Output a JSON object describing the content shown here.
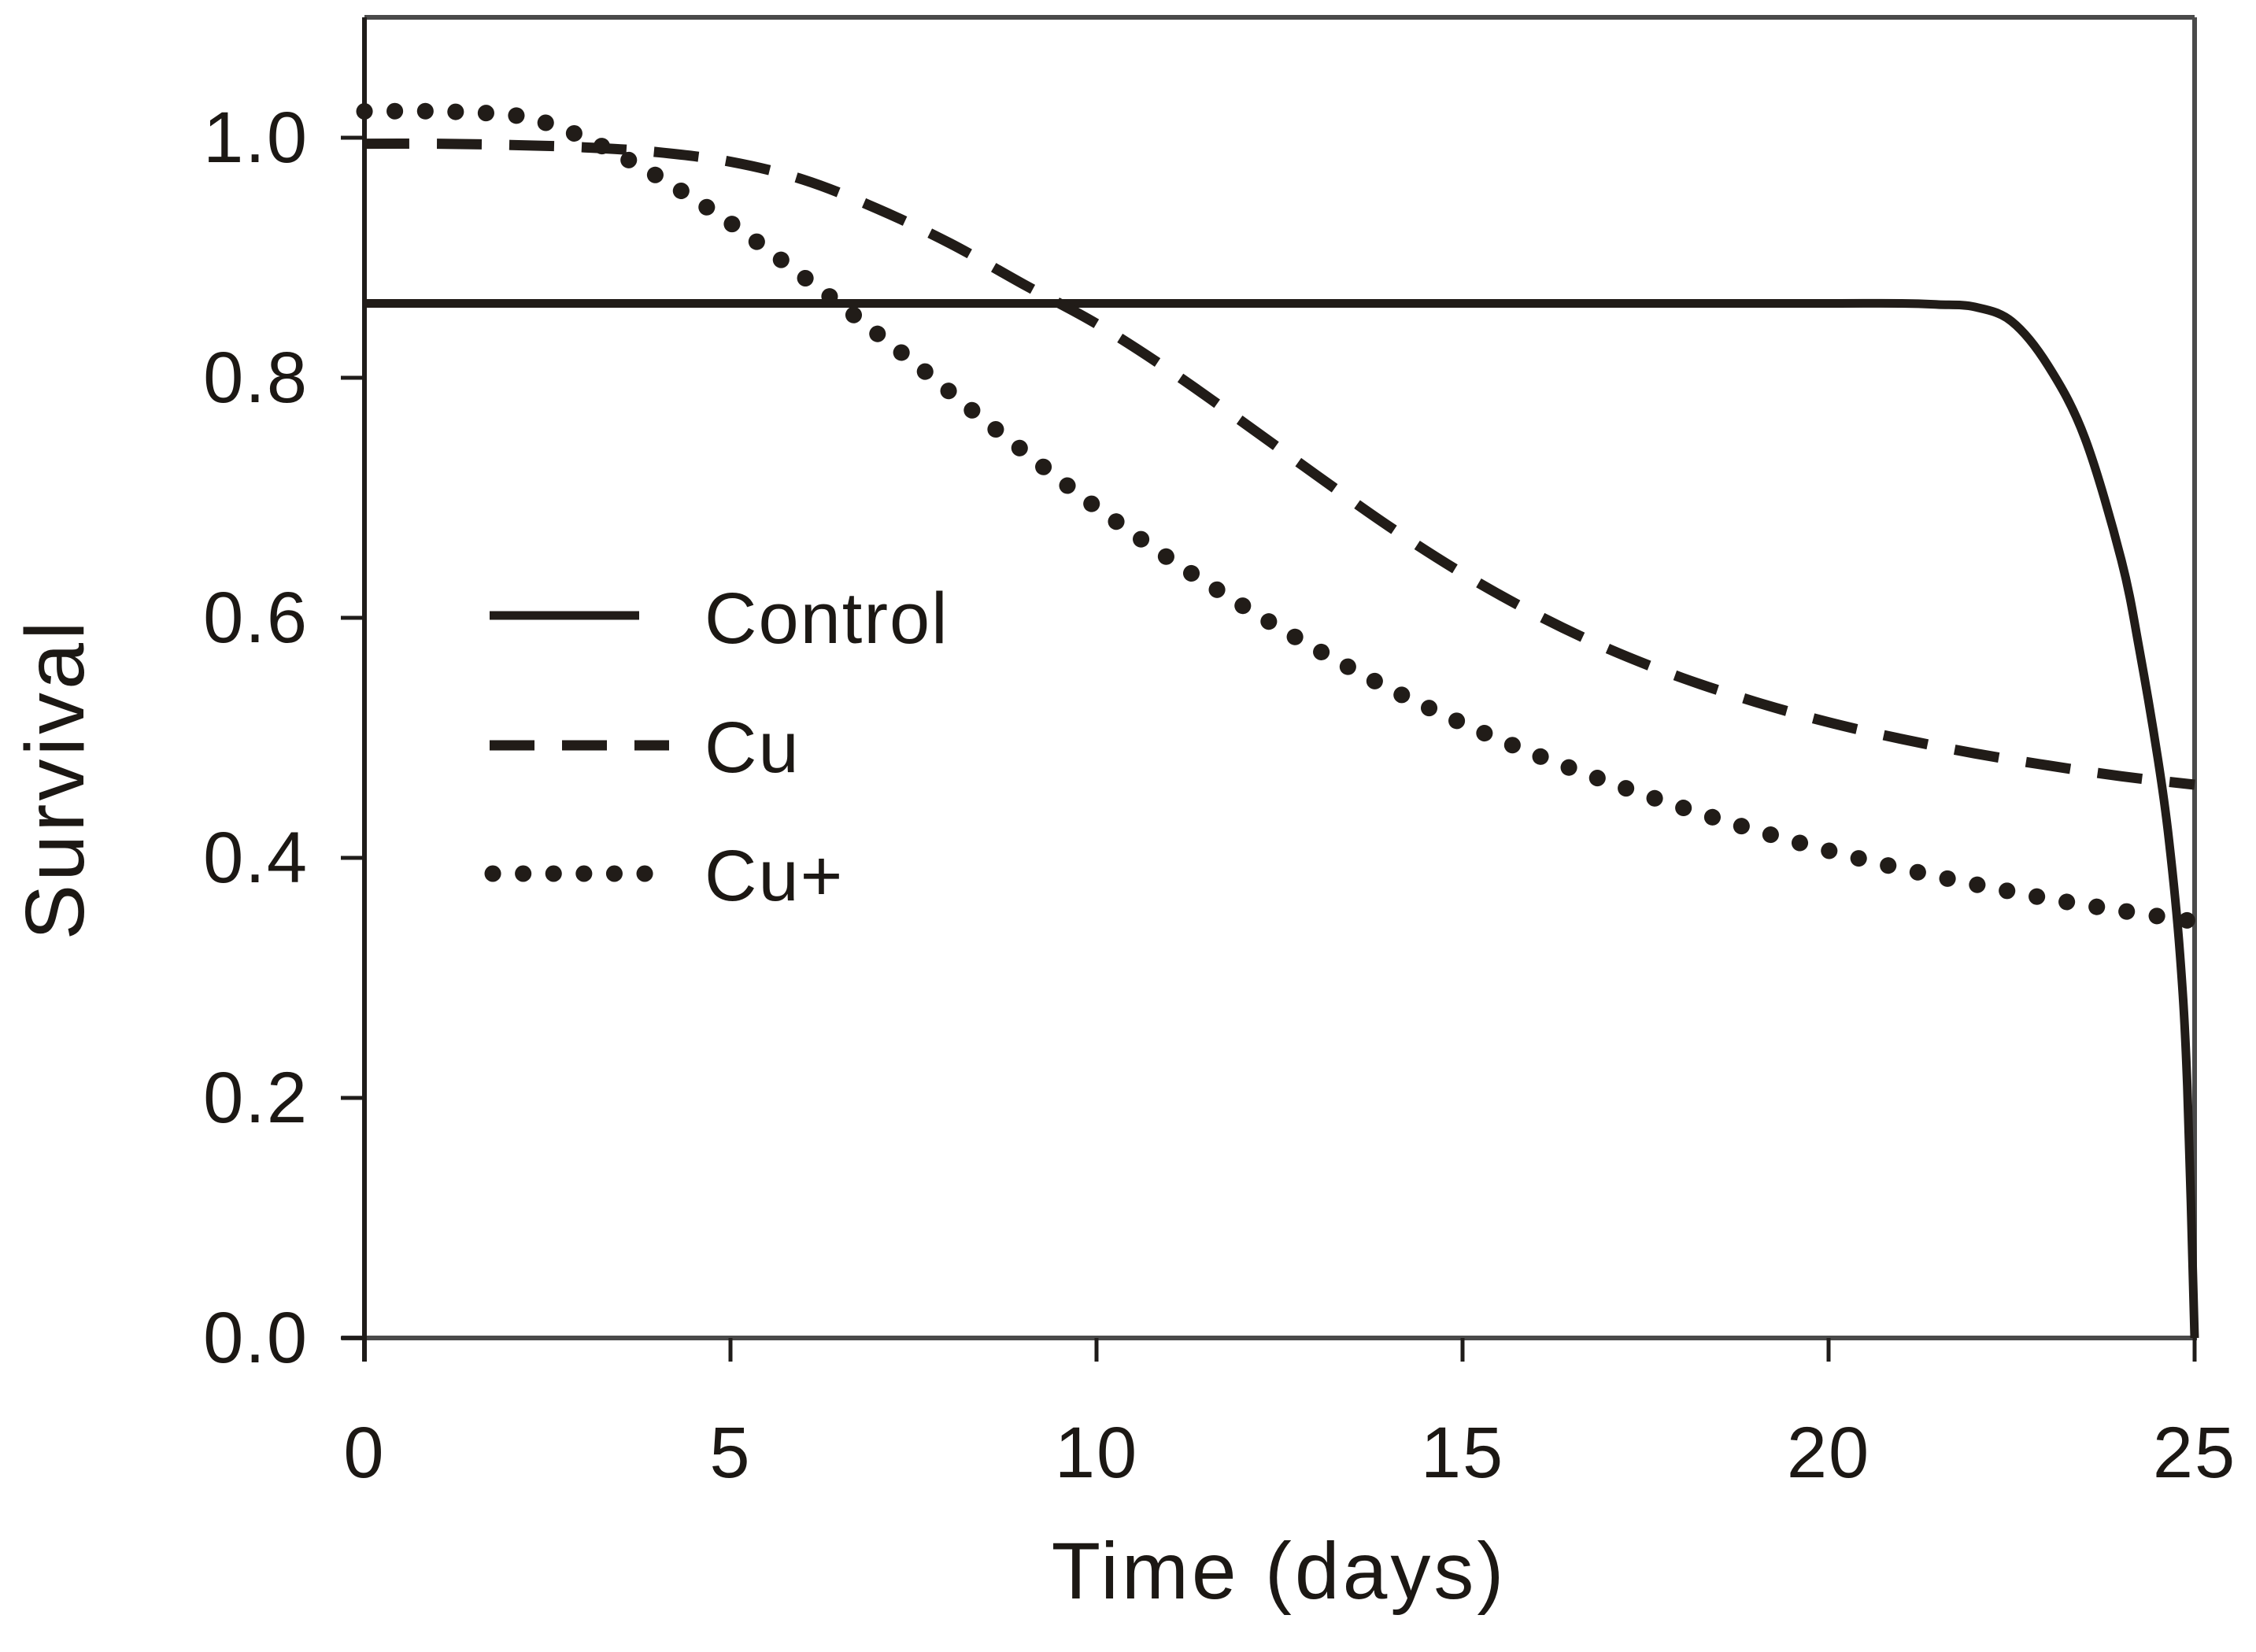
{
  "figure": {
    "background": "#ffffff",
    "frame_color": "#4a4a4a",
    "axis_color": "#1f1c1a",
    "curve_color": "#211c18",
    "text_color": "#1c1814"
  },
  "chart_data": {
    "type": "line",
    "title": "",
    "xlabel": "Time (days)",
    "ylabel": "Survival",
    "xlim": [
      0,
      25
    ],
    "ylim": [
      0,
      1.1
    ],
    "x_ticks": [
      0,
      5,
      10,
      15,
      20,
      25
    ],
    "y_ticks": [
      0.0,
      0.2,
      0.4,
      0.6,
      0.8,
      1.0
    ],
    "x_tick_labels": [
      "0",
      "5",
      "10",
      "15",
      "20",
      "25"
    ],
    "y_tick_labels": [
      "0.0",
      "0.2",
      "0.4",
      "0.6",
      "0.8",
      "1.0"
    ],
    "grid": false,
    "legend_position": "inside-left",
    "series": [
      {
        "name": "Control",
        "line_style": "solid",
        "x": [
          0,
          2,
          4,
          6,
          8,
          10,
          12,
          14,
          16,
          18,
          20,
          21,
          21.5,
          22,
          22.5,
          23,
          23.5,
          24,
          24.25,
          24.5,
          24.65,
          24.8,
          24.9,
          25
        ],
        "y": [
          0.862,
          0.862,
          0.862,
          0.862,
          0.862,
          0.862,
          0.862,
          0.862,
          0.862,
          0.862,
          0.862,
          0.862,
          0.861,
          0.859,
          0.847,
          0.81,
          0.75,
          0.648,
          0.572,
          0.482,
          0.415,
          0.32,
          0.21,
          0.0
        ]
      },
      {
        "name": "Cu",
        "line_style": "dashed",
        "x": [
          0,
          1,
          2,
          3,
          4,
          5,
          6,
          7,
          8,
          9,
          10,
          11,
          12,
          13,
          14,
          15,
          16,
          17,
          18,
          19,
          20,
          21,
          22,
          23,
          24,
          25
        ],
        "y": [
          0.995,
          0.995,
          0.994,
          0.992,
          0.988,
          0.98,
          0.965,
          0.941,
          0.912,
          0.878,
          0.845,
          0.806,
          0.763,
          0.719,
          0.676,
          0.637,
          0.603,
          0.574,
          0.55,
          0.53,
          0.513,
          0.499,
          0.487,
          0.477,
          0.468,
          0.461
        ]
      },
      {
        "name": "Cu+",
        "line_style": "dotted",
        "x": [
          0,
          1,
          2,
          2.5,
          3,
          3.5,
          4,
          4.5,
          5,
          5.5,
          6,
          6.5,
          7,
          7.5,
          8,
          8.5,
          9,
          9.5,
          10,
          11,
          12,
          13,
          14,
          15,
          16,
          17,
          18,
          19,
          20,
          21,
          22,
          23,
          24,
          25
        ],
        "y": [
          1.022,
          1.022,
          1.019,
          1.012,
          1.0,
          0.985,
          0.968,
          0.949,
          0.929,
          0.907,
          0.884,
          0.861,
          0.837,
          0.813,
          0.788,
          0.763,
          0.739,
          0.715,
          0.692,
          0.649,
          0.61,
          0.574,
          0.541,
          0.512,
          0.486,
          0.463,
          0.442,
          0.423,
          0.406,
          0.391,
          0.378,
          0.366,
          0.356,
          0.347
        ]
      }
    ]
  },
  "legend": {
    "items": [
      {
        "label": "Control",
        "style": "solid"
      },
      {
        "label": "Cu",
        "style": "dashed"
      },
      {
        "label": "Cu+",
        "style": "dotted"
      }
    ]
  }
}
